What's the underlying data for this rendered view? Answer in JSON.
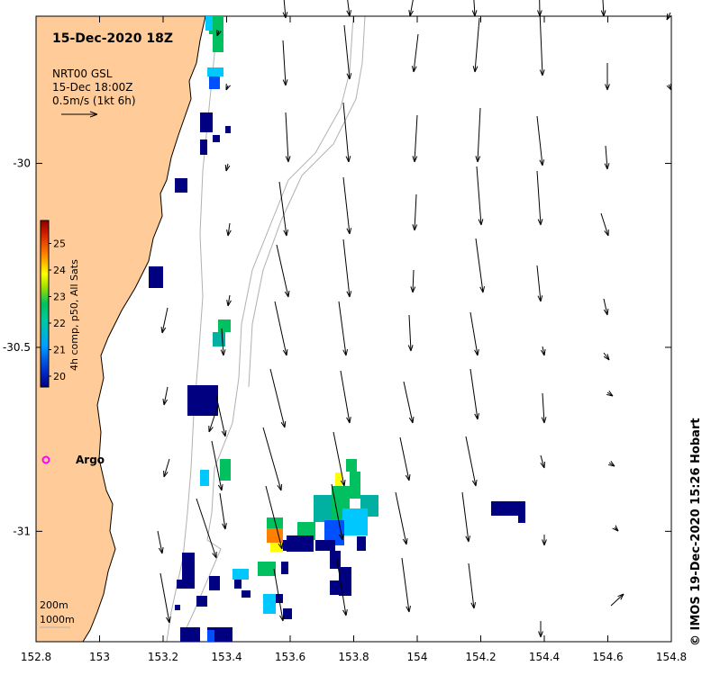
{
  "title": "15-Dec-2020 18Z",
  "product": {
    "line1": "NRT00 GSL",
    "line2": "15-Dec 18:00Z",
    "line3": "0.5m/s (1kt 6h)"
  },
  "colorbar": {
    "label": "4h comp, p50, All Sats",
    "ticks": [
      "20",
      "21",
      "22",
      "23",
      "24",
      "25"
    ],
    "colors": [
      "#000080",
      "#0050ff",
      "#00c8ff",
      "#00c060",
      "#ffff00",
      "#ff8000",
      "#8b0000"
    ]
  },
  "marker": {
    "label": "Argo",
    "color": "#ff00ff"
  },
  "depth_labels": [
    "200m",
    "1000m"
  ],
  "credit": "© IMOS 19-Dec-2020 15:26 Hobart",
  "x_axis": {
    "ticks": [
      "152.8",
      "153",
      "153.2",
      "153.4",
      "153.6",
      "153.8",
      "154",
      "154.2",
      "154.4",
      "154.6",
      "154.8"
    ],
    "values": [
      152.8,
      153.0,
      153.2,
      153.4,
      153.6,
      153.8,
      154.0,
      154.2,
      154.4,
      154.6,
      154.8
    ]
  },
  "y_axis": {
    "ticks": [
      "-30",
      "-30.5",
      "-31"
    ],
    "values": [
      -30.0,
      -30.5,
      -31.0
    ]
  },
  "map_extent": {
    "lon": [
      152.8,
      154.8
    ],
    "lat": [
      -29.6,
      -31.3
    ]
  },
  "land_color": "#ffcc99"
}
